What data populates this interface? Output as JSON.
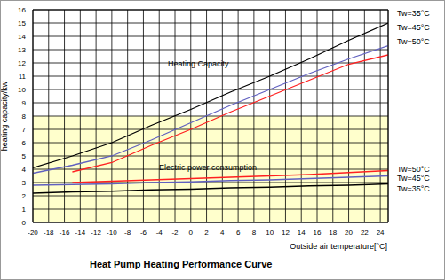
{
  "chart_data": {
    "type": "line",
    "title": "Heat Pump Heating Performance Curve",
    "x_label": "Outside air temperature[°C]",
    "y_label": "heating capacity/kw",
    "x": [
      -20,
      -15,
      -10,
      -5,
      0,
      5,
      10,
      15,
      20,
      25
    ],
    "series": [
      {
        "name": "Tw=35°C",
        "color": "#000000",
        "values": [
          4.1,
          5.0,
          6.0,
          7.3,
          8.5,
          9.8,
          11.0,
          12.3,
          13.7,
          15.0
        ]
      },
      {
        "name": "Tw=45°C",
        "color": "#6060c0",
        "values": [
          3.7,
          4.3,
          5.0,
          6.2,
          7.5,
          8.8,
          10.0,
          11.2,
          12.3,
          13.3
        ]
      },
      {
        "name": "Tw=50°C",
        "color": "#ff2020",
        "values": [
          null,
          3.8,
          4.5,
          5.8,
          7.0,
          8.3,
          9.5,
          10.7,
          11.9,
          12.6
        ]
      },
      {
        "name": "Tw=50°C",
        "color": "#ff2020",
        "values": [
          null,
          3.0,
          3.1,
          3.2,
          3.3,
          3.4,
          3.5,
          3.6,
          3.75,
          3.9
        ]
      },
      {
        "name": "Tw=45°C",
        "color": "#6060c0",
        "values": [
          2.8,
          2.85,
          2.9,
          3.0,
          3.05,
          3.15,
          3.2,
          3.3,
          3.4,
          3.5
        ]
      },
      {
        "name": "Tw=35°C",
        "color": "#000000",
        "values": [
          2.2,
          2.3,
          2.35,
          2.45,
          2.5,
          2.6,
          2.65,
          2.75,
          2.8,
          2.9
        ]
      }
    ],
    "annotations": [
      {
        "text": "Heating Capacity"
      },
      {
        "text": "Electric power consumption"
      }
    ],
    "xlim": [
      -20,
      25
    ],
    "xticks": [
      -20,
      -18,
      -16,
      -14,
      -12,
      -10,
      -8,
      -6,
      -4,
      -2,
      0,
      2,
      4,
      6,
      8,
      10,
      12,
      14,
      16,
      18,
      20,
      22,
      24
    ],
    "ylim": [
      0,
      16
    ],
    "yticks": [
      0,
      1,
      2,
      3,
      4,
      5,
      6,
      7,
      8,
      9,
      10,
      11,
      12,
      13,
      14,
      15,
      16
    ],
    "grid": true
  }
}
